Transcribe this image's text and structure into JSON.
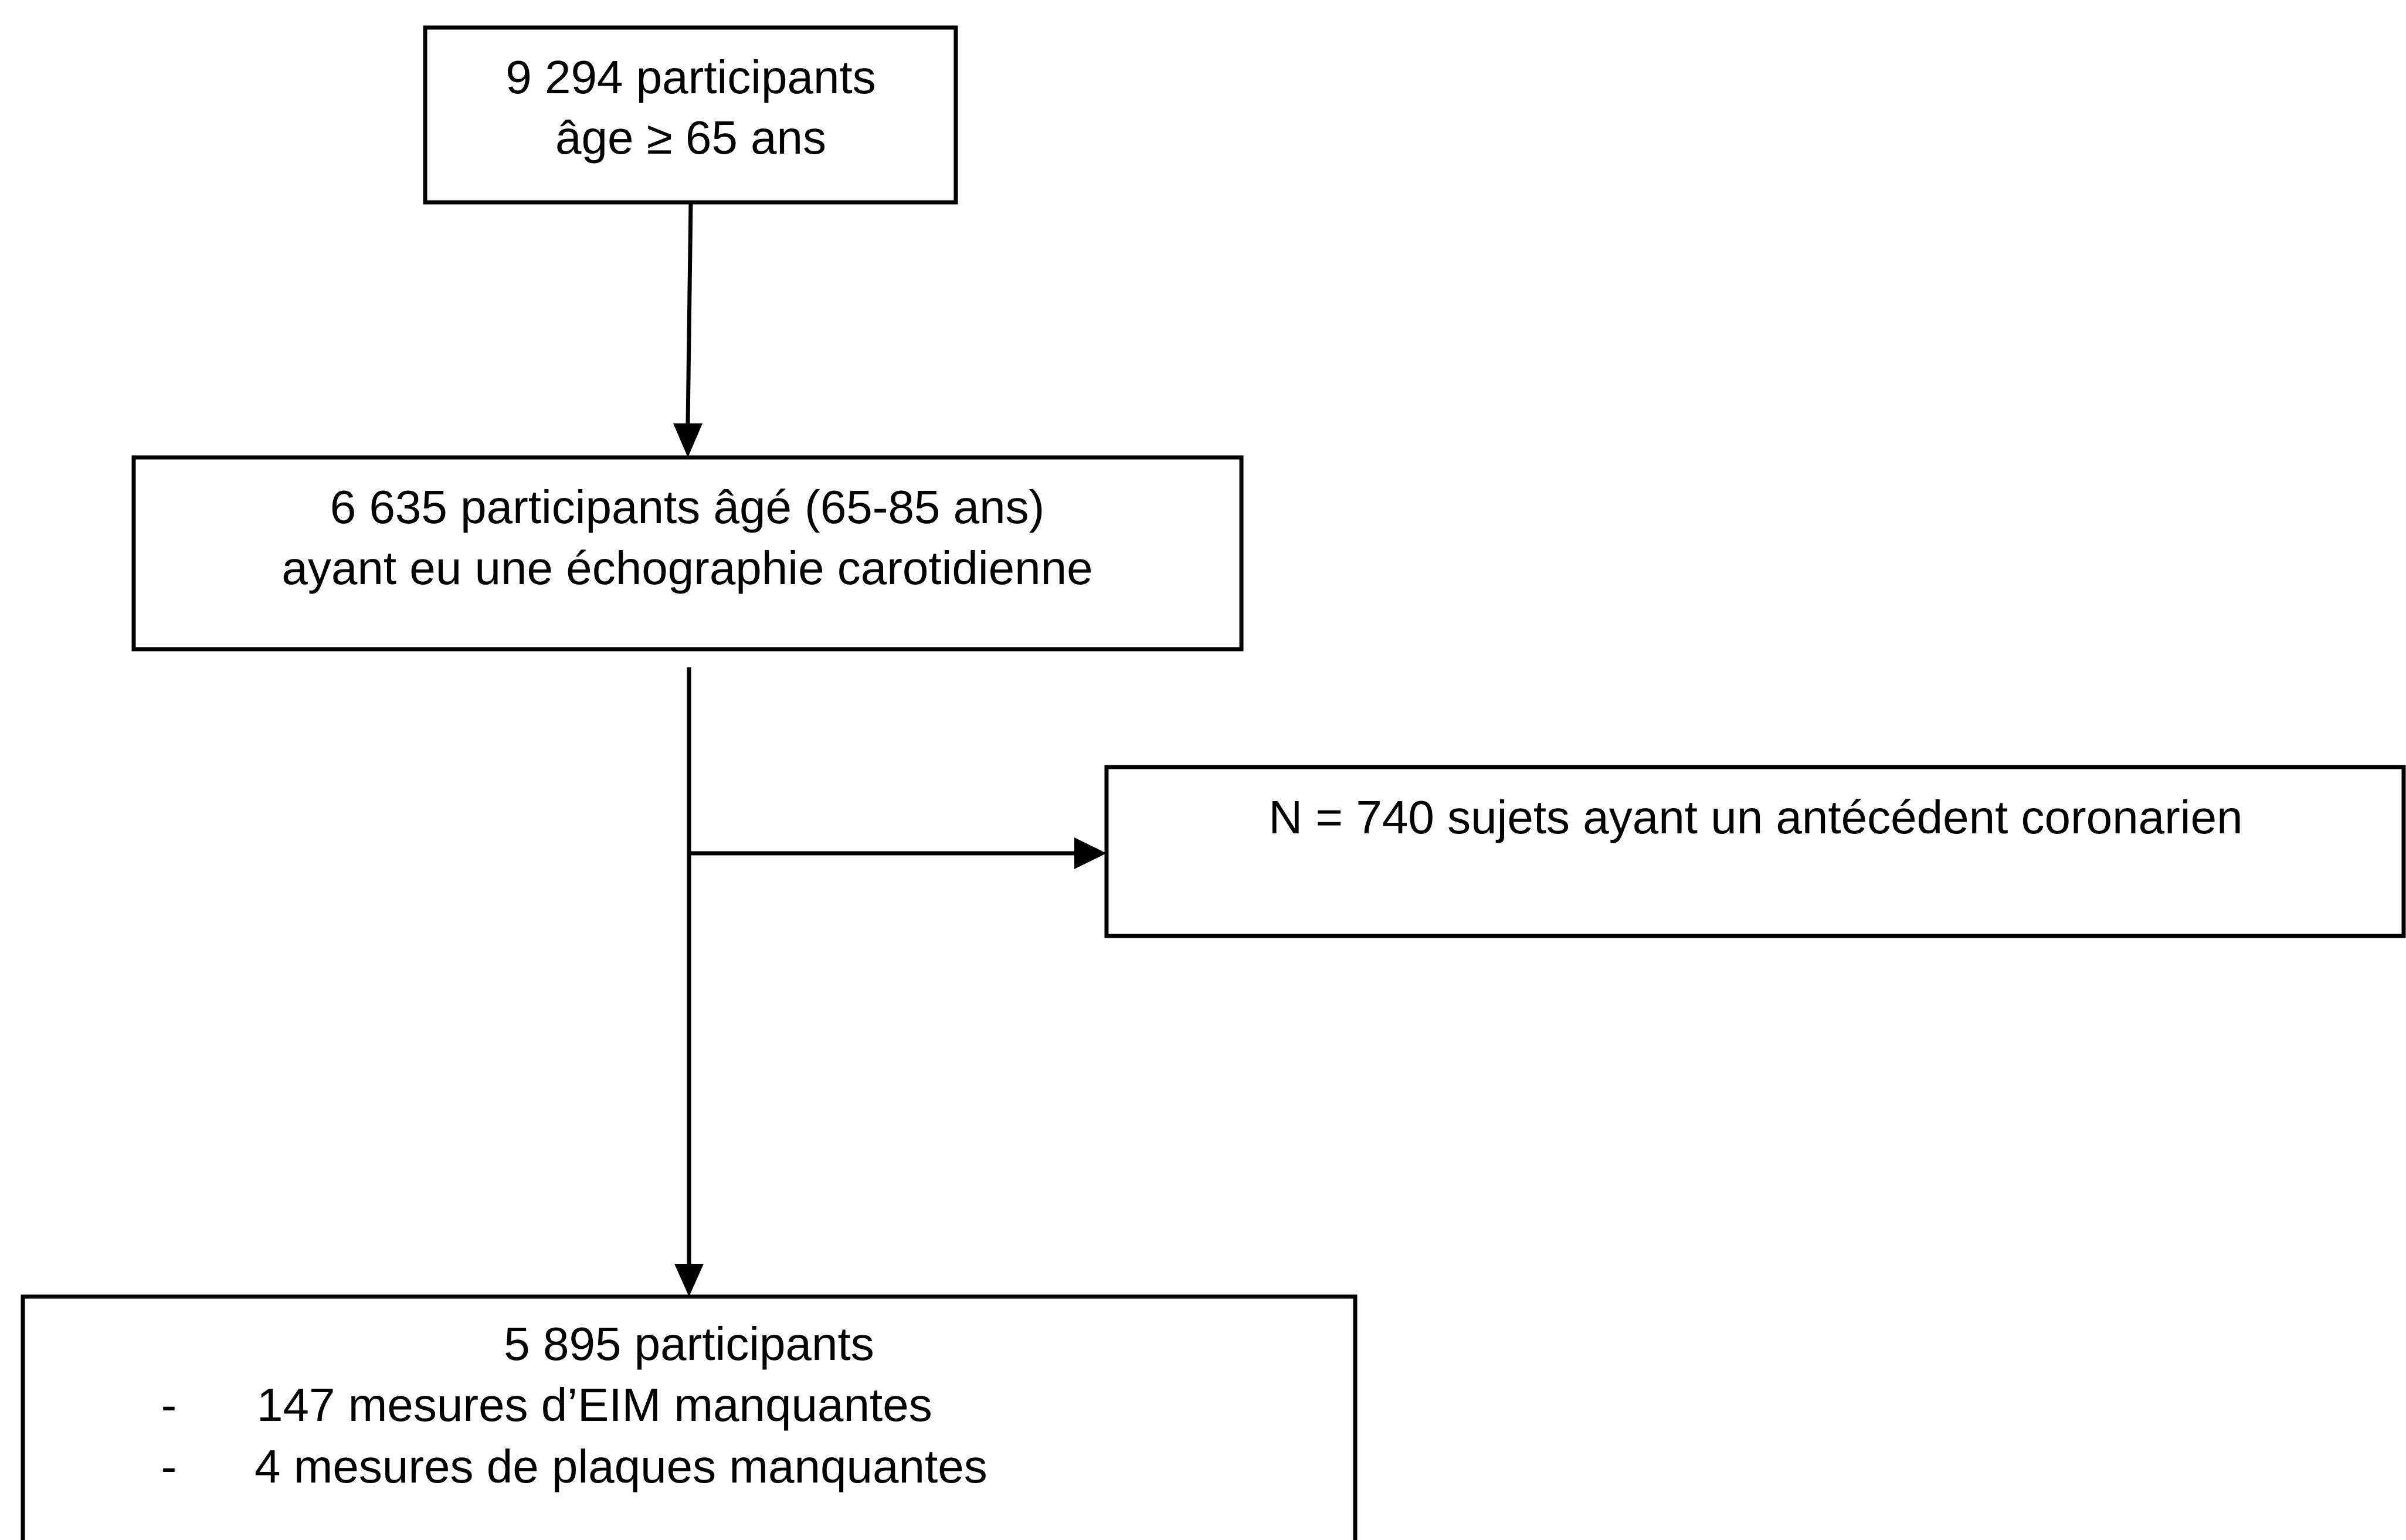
{
  "nodes": [
    {
      "lines": [
        "9 294 participants",
        "âge ≥ 65 ans"
      ]
    },
    {
      "lines": [
        "6 635 participants âgé (65-85 ans)",
        "ayant eu une échographie carotidienne"
      ]
    },
    {
      "lines": [
        "N = 740 sujets ayant un antécédent coronarien"
      ]
    },
    {
      "lines": [
        "5 895 participants"
      ],
      "items": [
        {
          "marker": "-",
          "text": "147 mesures d’EIM manquantes"
        },
        {
          "marker": "-",
          "text": "4 mesures de plaques manquantes"
        }
      ]
    }
  ]
}
